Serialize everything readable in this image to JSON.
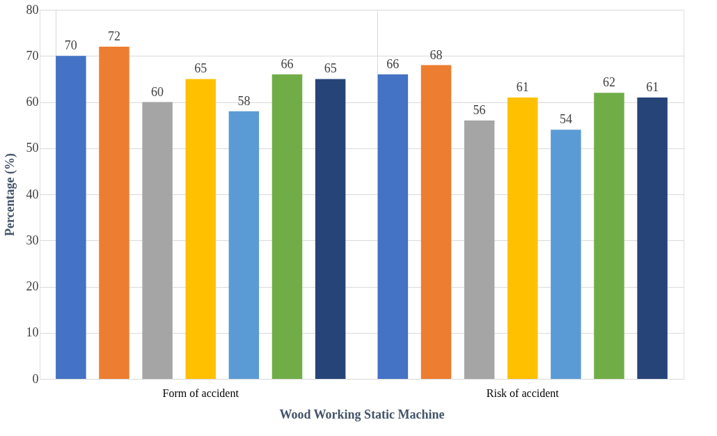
{
  "chart_data": {
    "type": "bar",
    "xlabel": "Wood Working Static Machine",
    "ylabel": "Percentage (%)",
    "categories": [
      "Form of accident",
      "Risk of accident"
    ],
    "series": [
      {
        "color": "#4472c4",
        "values": [
          70,
          66
        ]
      },
      {
        "color": "#ed7d31",
        "values": [
          72,
          68
        ]
      },
      {
        "color": "#a5a5a5",
        "values": [
          60,
          56
        ]
      },
      {
        "color": "#ffc000",
        "values": [
          65,
          61
        ]
      },
      {
        "color": "#5b9bd5",
        "values": [
          58,
          54
        ]
      },
      {
        "color": "#70ad47",
        "values": [
          66,
          62
        ]
      },
      {
        "color": "#264478",
        "values": [
          65,
          61
        ]
      }
    ],
    "ylim": [
      0,
      80
    ],
    "yticks": [
      0,
      10,
      20,
      30,
      40,
      50,
      60,
      70,
      80
    ],
    "grid": true,
    "data_labels": true
  }
}
